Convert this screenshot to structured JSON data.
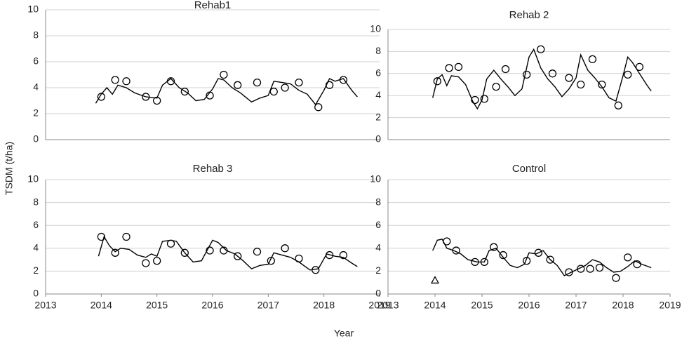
{
  "ylabel": "TSDM (t/ha)",
  "xlabel": "Year",
  "chart_data": [
    {
      "type": "line",
      "title": "Rehab1",
      "xlim": [
        2013,
        2019
      ],
      "ylim": [
        0,
        10
      ],
      "yticks": [
        0,
        2,
        4,
        6,
        8,
        10
      ],
      "grid": true,
      "series": [
        {
          "type": "line",
          "color": "#000000",
          "x": [
            2013.9,
            2014.0,
            2014.1,
            2014.2,
            2014.3,
            2014.45,
            2014.6,
            2014.8,
            2015.0,
            2015.1,
            2015.25,
            2015.4,
            2015.55,
            2015.7,
            2015.85,
            2016.0,
            2016.1,
            2016.2,
            2016.35,
            2016.5,
            2016.7,
            2016.85,
            2017.0,
            2017.1,
            2017.25,
            2017.4,
            2017.55,
            2017.7,
            2017.85,
            2018.0,
            2018.1,
            2018.2,
            2018.35,
            2018.5,
            2018.6
          ],
          "values": [
            2.8,
            3.5,
            4.0,
            3.5,
            4.2,
            4.0,
            3.6,
            3.3,
            3.2,
            4.2,
            4.7,
            4.0,
            3.6,
            3.0,
            3.1,
            3.9,
            4.7,
            4.6,
            4.0,
            3.6,
            2.9,
            3.2,
            3.4,
            4.5,
            4.4,
            4.3,
            3.8,
            3.5,
            2.7,
            3.8,
            4.7,
            4.5,
            4.7,
            3.8,
            3.3
          ]
        },
        {
          "type": "scatter",
          "marker": "circle",
          "color": "#000000",
          "x": [
            2014.0,
            2014.25,
            2014.45,
            2014.8,
            2015.0,
            2015.25,
            2015.5,
            2015.95,
            2016.2,
            2016.45,
            2016.8,
            2017.1,
            2017.3,
            2017.55,
            2017.9,
            2018.1,
            2018.35
          ],
          "values": [
            3.3,
            4.6,
            4.5,
            3.3,
            3.0,
            4.5,
            3.7,
            3.4,
            5.0,
            4.2,
            4.4,
            3.7,
            4.0,
            4.4,
            2.5,
            4.2,
            4.6
          ]
        }
      ]
    },
    {
      "type": "line",
      "title": "Rehab 2",
      "xlim": [
        2013,
        2019
      ],
      "ylim": [
        0,
        10
      ],
      "yticks": [
        0,
        2,
        4,
        6,
        8,
        10
      ],
      "grid": true,
      "series": [
        {
          "type": "line",
          "color": "#000000",
          "x": [
            2013.95,
            2014.05,
            2014.15,
            2014.25,
            2014.35,
            2014.5,
            2014.65,
            2014.8,
            2014.9,
            2015.0,
            2015.1,
            2015.25,
            2015.4,
            2015.55,
            2015.7,
            2015.85,
            2016.0,
            2016.1,
            2016.25,
            2016.4,
            2016.55,
            2016.7,
            2016.85,
            2017.0,
            2017.1,
            2017.25,
            2017.4,
            2017.55,
            2017.7,
            2017.85,
            2018.0,
            2018.1,
            2018.2,
            2018.35,
            2018.5,
            2018.6
          ],
          "values": [
            3.8,
            5.5,
            5.9,
            4.9,
            5.8,
            5.7,
            5.0,
            3.5,
            2.8,
            3.6,
            5.5,
            6.3,
            5.5,
            4.8,
            4.0,
            4.6,
            7.5,
            8.2,
            6.5,
            5.5,
            4.8,
            3.9,
            4.6,
            5.6,
            7.7,
            6.3,
            5.6,
            4.8,
            3.8,
            3.5,
            5.8,
            7.5,
            7.0,
            6.0,
            5.0,
            4.4
          ]
        },
        {
          "type": "scatter",
          "marker": "circle",
          "color": "#000000",
          "x": [
            2014.05,
            2014.3,
            2014.5,
            2014.85,
            2015.05,
            2015.3,
            2015.5,
            2015.95,
            2016.25,
            2016.5,
            2016.85,
            2017.1,
            2017.35,
            2017.55,
            2017.9,
            2018.1,
            2018.35
          ],
          "values": [
            5.3,
            6.5,
            6.6,
            3.6,
            3.7,
            4.8,
            6.4,
            5.9,
            8.2,
            6.0,
            5.6,
            5.0,
            7.3,
            5.0,
            3.1,
            5.9,
            6.6
          ]
        }
      ]
    },
    {
      "type": "line",
      "title": "Rehab 3",
      "xlim": [
        2013,
        2019
      ],
      "xticks": [
        2013,
        2014,
        2015,
        2016,
        2017,
        2018,
        2019
      ],
      "ylim": [
        0,
        10
      ],
      "yticks": [
        0,
        2,
        4,
        6,
        8,
        10
      ],
      "grid": true,
      "series": [
        {
          "type": "line",
          "color": "#000000",
          "x": [
            2013.95,
            2014.05,
            2014.15,
            2014.25,
            2014.35,
            2014.5,
            2014.65,
            2014.8,
            2014.9,
            2015.0,
            2015.1,
            2015.25,
            2015.35,
            2015.5,
            2015.65,
            2015.8,
            2016.0,
            2016.1,
            2016.25,
            2016.4,
            2016.55,
            2016.7,
            2016.85,
            2017.0,
            2017.1,
            2017.25,
            2017.4,
            2017.55,
            2017.75,
            2017.9,
            2018.05,
            2018.2,
            2018.35,
            2018.5,
            2018.6
          ],
          "values": [
            3.3,
            5.0,
            4.2,
            3.7,
            4.0,
            3.9,
            3.4,
            3.2,
            3.5,
            3.3,
            4.6,
            4.7,
            4.6,
            3.6,
            2.8,
            2.9,
            4.7,
            4.5,
            3.8,
            3.5,
            2.9,
            2.2,
            2.5,
            2.6,
            3.6,
            3.4,
            3.2,
            2.8,
            2.1,
            2.2,
            3.5,
            3.3,
            3.2,
            2.7,
            2.4
          ]
        },
        {
          "type": "scatter",
          "marker": "circle",
          "color": "#000000",
          "x": [
            2014.0,
            2014.25,
            2014.45,
            2014.8,
            2015.0,
            2015.25,
            2015.5,
            2015.95,
            2016.2,
            2016.45,
            2016.8,
            2017.05,
            2017.3,
            2017.55,
            2017.85,
            2018.1,
            2018.35
          ],
          "values": [
            5.0,
            3.6,
            5.0,
            2.7,
            2.9,
            4.4,
            3.6,
            3.8,
            3.8,
            3.3,
            3.7,
            2.9,
            4.0,
            3.1,
            2.1,
            3.4,
            3.4
          ]
        }
      ]
    },
    {
      "type": "line",
      "title": "Control",
      "xlim": [
        2013,
        2019
      ],
      "xticks": [
        2013,
        2014,
        2015,
        2016,
        2017,
        2018,
        2019
      ],
      "ylim": [
        0,
        10
      ],
      "yticks": [
        0,
        2,
        4,
        6,
        8,
        10
      ],
      "grid": true,
      "series": [
        {
          "type": "line",
          "color": "#000000",
          "x": [
            2013.95,
            2014.05,
            2014.15,
            2014.25,
            2014.4,
            2014.55,
            2014.7,
            2014.9,
            2015.05,
            2015.15,
            2015.3,
            2015.45,
            2015.6,
            2015.75,
            2015.9,
            2016.0,
            2016.15,
            2016.3,
            2016.45,
            2016.6,
            2016.75,
            2016.9,
            2017.05,
            2017.2,
            2017.35,
            2017.5,
            2017.65,
            2017.8,
            2017.95,
            2018.1,
            2018.25,
            2018.4,
            2018.6
          ],
          "values": [
            3.8,
            4.7,
            4.8,
            4.0,
            3.8,
            3.5,
            3.0,
            2.8,
            2.8,
            3.8,
            4.0,
            3.2,
            2.5,
            2.3,
            2.6,
            3.6,
            3.5,
            3.8,
            3.0,
            2.5,
            1.6,
            1.9,
            2.2,
            2.5,
            3.0,
            2.8,
            2.3,
            1.9,
            2.0,
            2.4,
            2.9,
            2.6,
            2.3
          ]
        },
        {
          "type": "scatter",
          "marker": "circle",
          "color": "#000000",
          "x": [
            2014.25,
            2014.45,
            2014.85,
            2015.05,
            2015.25,
            2015.45,
            2015.95,
            2016.2,
            2016.45,
            2016.85,
            2017.1,
            2017.3,
            2017.5,
            2017.85,
            2018.1,
            2018.3
          ],
          "values": [
            4.6,
            3.8,
            2.8,
            2.8,
            4.1,
            3.4,
            2.9,
            3.6,
            3.0,
            1.9,
            2.2,
            2.2,
            2.3,
            1.4,
            3.2,
            2.6
          ]
        },
        {
          "type": "scatter",
          "marker": "triangle",
          "color": "#000000",
          "x": [
            2014.0
          ],
          "values": [
            1.2
          ]
        }
      ]
    }
  ]
}
